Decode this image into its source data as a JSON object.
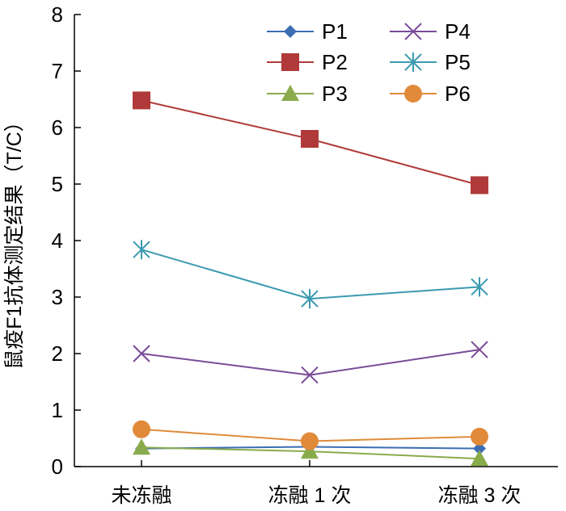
{
  "chart_data": {
    "type": "line",
    "title": "",
    "xlabel": "",
    "ylabel": "鼠疫F1抗体测定结果（T/C）",
    "categories": [
      "未冻融",
      "冻融 1 次",
      "冻融 3 次"
    ],
    "ylim": [
      0,
      8
    ],
    "yticks": [
      "0",
      "1",
      "2",
      "3",
      "4",
      "5",
      "6",
      "7",
      "8"
    ],
    "grid": false,
    "legend_position": "top-right",
    "series": [
      {
        "name": "P1",
        "color": "#3b6db3",
        "marker": "diamond",
        "values": [
          0.32,
          0.35,
          0.32
        ]
      },
      {
        "name": "P2",
        "color": "#b03a3a",
        "marker": "square",
        "values": [
          6.48,
          5.8,
          4.98
        ]
      },
      {
        "name": "P3",
        "color": "#8aab4c",
        "marker": "triangle",
        "values": [
          0.34,
          0.27,
          0.14
        ]
      },
      {
        "name": "P4",
        "color": "#7a4b99",
        "marker": "x",
        "values": [
          2.0,
          1.62,
          2.07
        ]
      },
      {
        "name": "P5",
        "color": "#3a9ab0",
        "marker": "star",
        "values": [
          3.84,
          2.97,
          3.18
        ]
      },
      {
        "name": "P6",
        "color": "#e08a3a",
        "marker": "circle",
        "values": [
          0.66,
          0.45,
          0.53
        ]
      }
    ]
  }
}
